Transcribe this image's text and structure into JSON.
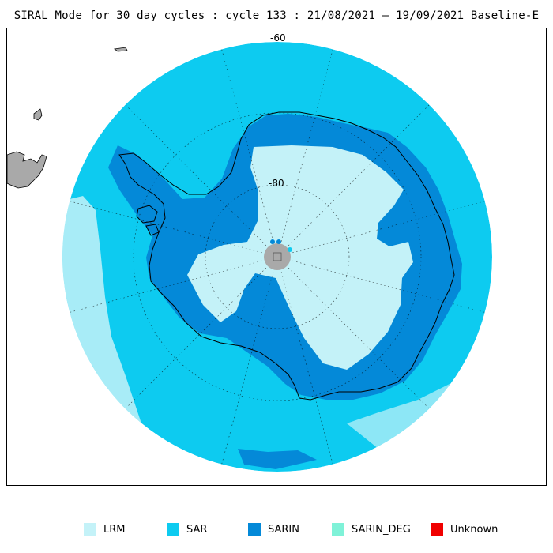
{
  "title": "SIRAL Mode for 30 day cycles : cycle 133 : 21/08/2021 – 19/09/2021 Baseline-E",
  "map": {
    "projection": "south polar stereographic",
    "latitude_labels": [
      "-60",
      "-80"
    ],
    "colors": {
      "ocean_background": "#f5f5f5",
      "land_outside": "#a9a9a9",
      "coastline": "#000000",
      "graticule": "#000000",
      "pole_hole": "#a9a9a9"
    }
  },
  "legend": {
    "items": [
      {
        "label": "LRM",
        "color": "#c4f2f8"
      },
      {
        "label": "SAR",
        "color": "#0dcbf0"
      },
      {
        "label": "SARIN",
        "color": "#0489d8"
      },
      {
        "label": "SARIN_DEG",
        "color": "#7ff2d8"
      },
      {
        "label": "Unknown",
        "color": "#f00000"
      }
    ]
  }
}
